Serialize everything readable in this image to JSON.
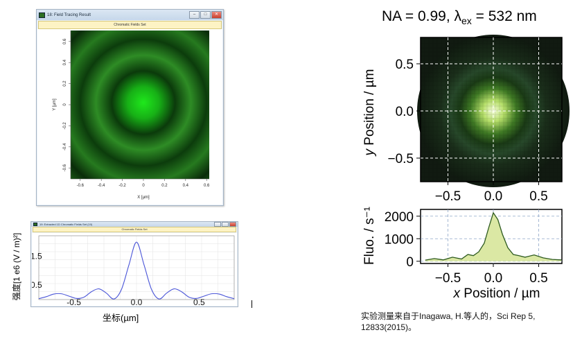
{
  "sim_window": {
    "title": "18: Field Tracing Result",
    "subtitle": "Chromatic Fields Set",
    "x_label": "X [µm]",
    "y_label": "Y [µm]",
    "x_ticks": [
      "-0.6",
      "-0.4",
      "-0.2",
      "0",
      "0.2",
      "0.4",
      "0.6"
    ],
    "y_ticks": [
      "0.6",
      "0.4",
      "0.2",
      "0",
      "-0.2",
      "-0.4",
      "-0.6"
    ],
    "colors": {
      "field_bright": "#1fe01c",
      "field_dark": "#0a2a0a",
      "field_ring": "#2f8d25"
    }
  },
  "profile_window": {
    "title": "19: Extracted 1D Chromatic Fields Set (10)",
    "subtitle": "Chromatic Fields Set",
    "y_label": "强度[1 e6 (V / m)²]",
    "x_label": "坐标(µm]",
    "x_ticks": [
      "-0.5",
      "0.0",
      "0.5"
    ],
    "y_ticks": [
      "1.5",
      "0.5"
    ],
    "line_color": "#4a55d8"
  },
  "experiment": {
    "title": "NA = 0.99, λex = 532 nm",
    "image": {
      "y_label": "y Position / µm",
      "y_ticks": [
        "0.5",
        "0.0",
        "−0.5"
      ],
      "x_ticks": [
        "−0.5",
        "0.0",
        "0.5"
      ]
    },
    "fluo": {
      "y_label": "Fluo. / s⁻¹",
      "y_ticks": [
        "2000",
        "1000",
        "0"
      ],
      "x_ticks": [
        "−0.5",
        "0.0",
        "0.5"
      ],
      "x_label": "x Position / µm",
      "line_color": "#2d5a1e",
      "fill_color": "#dbe8a4"
    }
  },
  "chart_data": [
    {
      "type": "line",
      "title": "",
      "xlabel": "坐标(µm]",
      "ylabel": "强度[1 e6 (V / m)²]",
      "xlim": [
        -0.78,
        0.78
      ],
      "ylim": [
        0,
        2.2
      ],
      "series": [
        {
          "x": [
            -0.78,
            -0.72,
            -0.66,
            -0.6,
            -0.54,
            -0.48,
            -0.42,
            -0.36,
            -0.3,
            -0.24,
            -0.18,
            -0.12,
            -0.06,
            0,
            0.06,
            0.12,
            0.18,
            0.24,
            0.3,
            0.36,
            0.42,
            0.48,
            0.54,
            0.6,
            0.66,
            0.72,
            0.78
          ],
          "y": [
            0.03,
            0.1,
            0.19,
            0.2,
            0.12,
            0.04,
            0.08,
            0.27,
            0.37,
            0.22,
            0.02,
            0.35,
            1.2,
            1.98,
            1.2,
            0.35,
            0.02,
            0.22,
            0.37,
            0.27,
            0.08,
            0.04,
            0.12,
            0.2,
            0.19,
            0.1,
            0.03
          ]
        }
      ]
    },
    {
      "type": "area",
      "title": "",
      "xlabel": "x Position / µm",
      "ylabel": "Fluo. / s⁻¹",
      "xlim": [
        -0.75,
        0.75
      ],
      "ylim": [
        -100,
        2300
      ],
      "series": [
        {
          "x": [
            -0.75,
            -0.65,
            -0.55,
            -0.45,
            -0.35,
            -0.28,
            -0.22,
            -0.16,
            -0.1,
            -0.05,
            0,
            0.05,
            0.1,
            0.16,
            0.22,
            0.28,
            0.35,
            0.45,
            0.55,
            0.65,
            0.75
          ],
          "y": [
            50,
            120,
            60,
            180,
            100,
            300,
            250,
            420,
            800,
            1500,
            2150,
            1850,
            1200,
            600,
            300,
            250,
            180,
            280,
            150,
            80,
            60
          ]
        }
      ]
    }
  ],
  "footnote": "实验测量来自于Inagawa, H.等人的，Sci Rep 5, 12833(2015)。"
}
